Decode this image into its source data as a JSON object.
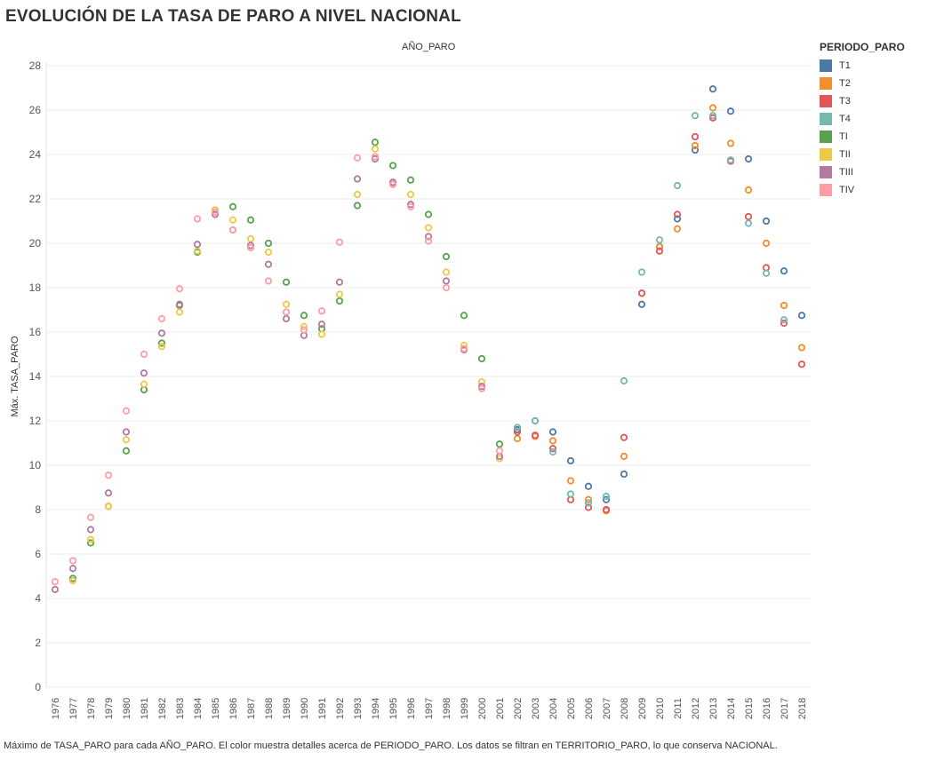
{
  "header": {
    "title": "EVOLUCIÓN DE LA TASA DE PARO A NIVEL NACIONAL",
    "column_header": "AÑO_PARO"
  },
  "legend": {
    "title": "PERIODO_PARO",
    "items": [
      {
        "label": "T1",
        "color": "#4e79a7"
      },
      {
        "label": "T2",
        "color": "#f28e2b"
      },
      {
        "label": "T3",
        "color": "#e15759"
      },
      {
        "label": "T4",
        "color": "#76b7b2"
      },
      {
        "label": "TI",
        "color": "#59a14f"
      },
      {
        "label": "TII",
        "color": "#edc948"
      },
      {
        "label": "TIII",
        "color": "#b07aa1"
      },
      {
        "label": "TIV",
        "color": "#ff9da7"
      }
    ]
  },
  "caption": "Máximo de  TASA_PARO para cada AÑO_PARO.  El color muestra detalles acerca de PERIODO_PARO. Los datos se filtran en TERRITORIO_PARO, lo que conserva NACIONAL.",
  "chart_data": {
    "type": "scatter",
    "xlabel": "AÑO_PARO",
    "ylabel": "Máx. TASA_PARO",
    "ylim": [
      0,
      28
    ],
    "y_ticks": [
      0,
      2,
      4,
      6,
      8,
      10,
      12,
      14,
      16,
      18,
      20,
      22,
      24,
      26,
      28
    ],
    "grid": true,
    "legend_position": "right",
    "categories": [
      "1976",
      "1977",
      "1978",
      "1979",
      "1980",
      "1981",
      "1982",
      "1983",
      "1984",
      "1985",
      "1986",
      "1987",
      "1988",
      "1989",
      "1990",
      "1991",
      "1992",
      "1993",
      "1994",
      "1995",
      "1996",
      "1997",
      "1998",
      "1999",
      "2000",
      "2001",
      "2002",
      "2003",
      "2004",
      "2005",
      "2006",
      "2007",
      "2008",
      "2009",
      "2010",
      "2011",
      "2012",
      "2013",
      "2014",
      "2015",
      "2016",
      "2017",
      "2018"
    ],
    "series": [
      {
        "name": "T1",
        "color": "#4e79a7",
        "values": [
          null,
          null,
          null,
          null,
          null,
          null,
          null,
          null,
          null,
          null,
          null,
          null,
          null,
          null,
          null,
          null,
          null,
          null,
          null,
          null,
          null,
          null,
          null,
          null,
          null,
          null,
          11.6,
          12.0,
          11.5,
          10.2,
          9.05,
          8.45,
          9.6,
          17.25,
          19.85,
          21.1,
          24.2,
          26.95,
          25.95,
          23.8,
          21.0,
          18.75,
          16.75
        ]
      },
      {
        "name": "T2",
        "color": "#f28e2b",
        "values": [
          null,
          null,
          null,
          null,
          null,
          null,
          null,
          null,
          null,
          null,
          null,
          null,
          null,
          null,
          null,
          null,
          null,
          null,
          null,
          null,
          null,
          null,
          null,
          null,
          null,
          null,
          11.2,
          11.3,
          11.1,
          9.3,
          8.45,
          7.95,
          10.4,
          17.75,
          19.85,
          20.65,
          24.4,
          26.1,
          24.5,
          22.4,
          20.0,
          17.2,
          15.3
        ]
      },
      {
        "name": "T3",
        "color": "#e15759",
        "values": [
          null,
          null,
          null,
          null,
          null,
          null,
          null,
          null,
          null,
          null,
          null,
          null,
          null,
          null,
          null,
          null,
          null,
          null,
          null,
          null,
          null,
          null,
          null,
          null,
          null,
          null,
          11.5,
          11.35,
          10.75,
          8.45,
          8.1,
          8.0,
          11.25,
          17.75,
          19.65,
          21.3,
          24.8,
          25.65,
          23.7,
          21.2,
          18.9,
          16.4,
          14.55
        ]
      },
      {
        "name": "T4",
        "color": "#76b7b2",
        "values": [
          null,
          null,
          null,
          null,
          null,
          null,
          null,
          null,
          null,
          null,
          null,
          null,
          null,
          null,
          null,
          null,
          null,
          null,
          null,
          null,
          null,
          null,
          null,
          null,
          null,
          null,
          11.7,
          12.0,
          10.6,
          8.7,
          8.3,
          8.6,
          13.8,
          18.7,
          20.15,
          22.6,
          25.75,
          25.75,
          23.75,
          20.9,
          18.65,
          16.55,
          null
        ]
      },
      {
        "name": "TI",
        "color": "#59a14f",
        "values": [
          null,
          4.9,
          6.5,
          8.15,
          10.65,
          13.4,
          15.5,
          17.2,
          19.6,
          21.5,
          21.65,
          21.05,
          20.0,
          18.25,
          16.75,
          16.15,
          17.4,
          21.7,
          24.55,
          23.5,
          22.85,
          21.3,
          19.4,
          16.75,
          14.8,
          10.95,
          null,
          null,
          null,
          null,
          null,
          null,
          null,
          null,
          null,
          null,
          null,
          null,
          null,
          null,
          null,
          null,
          null
        ]
      },
      {
        "name": "TII",
        "color": "#edc948",
        "values": [
          null,
          4.8,
          6.65,
          8.15,
          11.15,
          13.65,
          15.35,
          16.9,
          19.65,
          21.5,
          21.05,
          20.2,
          19.6,
          17.25,
          16.25,
          15.9,
          17.7,
          22.2,
          24.25,
          22.7,
          22.2,
          20.7,
          18.7,
          15.4,
          13.75,
          10.3,
          null,
          null,
          null,
          null,
          null,
          null,
          null,
          null,
          null,
          null,
          null,
          null,
          null,
          null,
          null,
          null,
          null
        ]
      },
      {
        "name": "TIII",
        "color": "#b07aa1",
        "values": [
          4.4,
          5.35,
          7.1,
          8.75,
          11.5,
          14.15,
          15.95,
          17.25,
          19.95,
          21.3,
          20.6,
          19.9,
          19.05,
          16.6,
          15.85,
          16.35,
          18.25,
          22.9,
          23.8,
          22.75,
          21.75,
          20.3,
          18.3,
          15.2,
          13.55,
          10.4,
          null,
          null,
          null,
          null,
          null,
          null,
          null,
          null,
          null,
          null,
          null,
          null,
          null,
          null,
          null,
          null,
          null
        ]
      },
      {
        "name": "TIV",
        "color": "#ff9da7",
        "values": [
          4.75,
          5.7,
          7.65,
          9.55,
          12.45,
          15.0,
          16.6,
          17.95,
          21.1,
          21.4,
          20.6,
          19.8,
          18.3,
          16.9,
          16.1,
          16.95,
          20.05,
          23.85,
          23.9,
          22.65,
          21.65,
          20.1,
          18.0,
          15.25,
          13.45,
          10.65,
          null,
          null,
          null,
          null,
          null,
          null,
          null,
          null,
          null,
          null,
          null,
          null,
          null,
          null,
          null,
          null,
          null
        ]
      }
    ]
  }
}
